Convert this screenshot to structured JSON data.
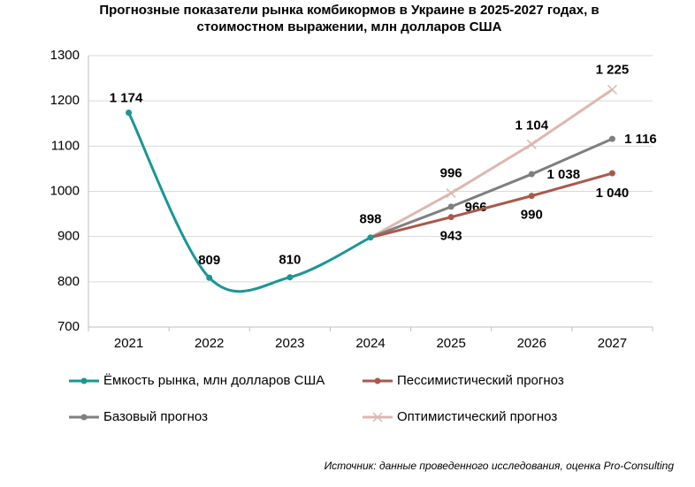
{
  "chart_data": {
    "type": "line",
    "title": "Прогнозные показатели рынка комбикормов в Украине в 2025-2027 годах, в стоимостном выражении, млн долларов США",
    "categories": [
      "2021",
      "2022",
      "2023",
      "2024",
      "2025",
      "2026",
      "2027"
    ],
    "series": [
      {
        "name": "Ёмкость рынка, млн долларов США",
        "color": "#1a9696",
        "marker": "circle",
        "smooth": true,
        "values": [
          1174,
          809,
          810,
          898,
          null,
          null,
          null
        ],
        "value_labels": [
          "1 174",
          "809",
          "810",
          "898",
          null,
          null,
          null
        ]
      },
      {
        "name": "Пессимистический прогноз",
        "color": "#a85a4a",
        "marker": "circle",
        "values": [
          null,
          null,
          null,
          898,
          943,
          990,
          1040
        ],
        "value_labels": [
          null,
          null,
          null,
          null,
          "943",
          "990",
          "1 040"
        ]
      },
      {
        "name": "Базовый прогноз",
        "color": "#7f7f7f",
        "marker": "circle",
        "values": [
          null,
          null,
          null,
          898,
          966,
          1038,
          1116
        ],
        "value_labels": [
          null,
          null,
          null,
          null,
          "966",
          "1 038",
          "1 116"
        ]
      },
      {
        "name": "Оптимистический прогноз",
        "color": "#dcb8b0",
        "marker": "x",
        "values": [
          null,
          null,
          null,
          898,
          996,
          1104,
          1225
        ],
        "value_labels": [
          null,
          null,
          null,
          null,
          "996",
          "1 104",
          "1 225"
        ]
      }
    ],
    "ylim": [
      700,
      1300
    ],
    "yticks": [
      700,
      800,
      900,
      1000,
      1100,
      1200,
      1300
    ],
    "grid": true,
    "source": "Источник: данные проведенного исследования, оценка Pro-Consulting"
  }
}
